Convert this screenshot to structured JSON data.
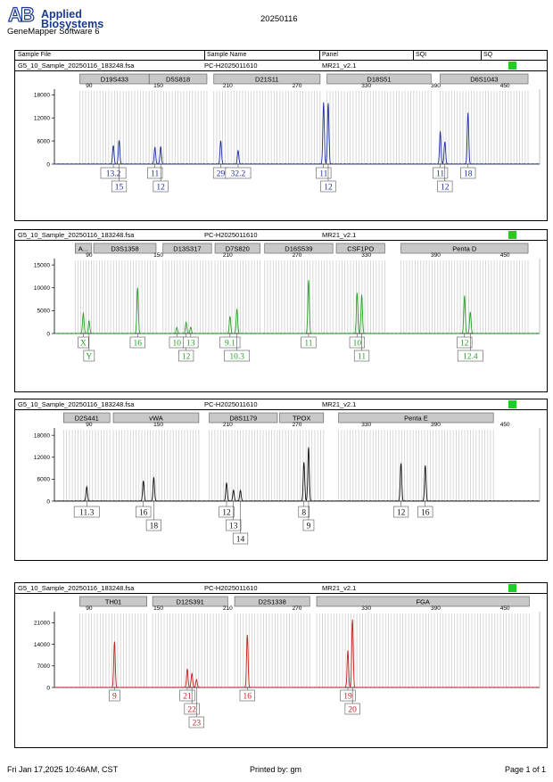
{
  "header": {
    "brand_line1": "Applied",
    "brand_line2": "Biosystems",
    "software": "GeneMapper Software 6",
    "date": "20250116",
    "columns": [
      "Sample File",
      "Sample Name",
      "Panel",
      "SQI",
      "SQ"
    ]
  },
  "colors": {
    "blue": "#1c2ea0",
    "green": "#2aa02a",
    "black": "#111111",
    "red": "#c42020",
    "sq_green": "#22cc22",
    "bin_fill": "#c8c8c8"
  },
  "chart_data": [
    {
      "type": "line",
      "sample_file": "G5_10_Sample_20250116_183248.fsa",
      "sample_name": "PC-H2025011610",
      "panel": "MR21_v2.1",
      "xlim": [
        60,
        480
      ],
      "xticks": [
        90,
        150,
        210,
        270,
        330,
        390,
        450
      ],
      "ylim": [
        0,
        19000
      ],
      "yticks": [
        0,
        6000,
        12000,
        18000
      ],
      "markers": [
        {
          "name": "D19S433",
          "x": [
            82,
            142
          ]
        },
        {
          "name": "D5S818",
          "x": [
            142,
            192
          ]
        },
        {
          "name": "D21S11",
          "x": [
            198,
            290
          ]
        },
        {
          "name": "D18S51",
          "x": [
            296,
            386
          ]
        },
        {
          "name": "D6S1043",
          "x": [
            394,
            470
          ]
        }
      ],
      "peaks": [
        {
          "x": 111,
          "h": 4800,
          "label": "13.2",
          "row": 1
        },
        {
          "x": 116,
          "h": 6100,
          "label": "15",
          "row": 2
        },
        {
          "x": 147,
          "h": 4400,
          "label": "11",
          "row": 1
        },
        {
          "x": 152,
          "h": 4500,
          "label": "12",
          "row": 2
        },
        {
          "x": 204,
          "h": 6000,
          "label": "29",
          "row": 1
        },
        {
          "x": 219,
          "h": 3400,
          "label": "32.2",
          "row": 1
        },
        {
          "x": 293,
          "h": 16000,
          "label": "11",
          "row": 1
        },
        {
          "x": 297,
          "h": 15800,
          "label": "12",
          "row": 2
        },
        {
          "x": 394,
          "h": 8500,
          "label": "11",
          "row": 1
        },
        {
          "x": 398,
          "h": 5800,
          "label": "12",
          "row": 2
        },
        {
          "x": 418,
          "h": 13300,
          "label": "18",
          "row": 1
        }
      ]
    },
    {
      "type": "line",
      "sample_file": "G5_10_Sample_20250116_183248.fsa",
      "sample_name": "PC-H2025011610",
      "panel": "MR21_v2.1",
      "xlim": [
        60,
        480
      ],
      "xticks": [
        90,
        150,
        210,
        270,
        330,
        390,
        450
      ],
      "ylim": [
        0,
        16000
      ],
      "yticks": [
        0,
        5000,
        10000,
        15000
      ],
      "markers": [
        {
          "name": "A...",
          "x": [
            78,
            92
          ]
        },
        {
          "name": "D3S1358",
          "x": [
            94,
            148
          ]
        },
        {
          "name": "D13S317",
          "x": [
            154,
            196
          ]
        },
        {
          "name": "D7S820",
          "x": [
            199,
            238
          ]
        },
        {
          "name": "D16S539",
          "x": [
            242,
            301
          ]
        },
        {
          "name": "CSF1PO",
          "x": [
            304,
            346
          ]
        },
        {
          "name": "Penta D",
          "x": [
            360,
            470
          ]
        }
      ],
      "peaks": [
        {
          "x": 85,
          "h": 4500,
          "label": "X",
          "row": 1
        },
        {
          "x": 90,
          "h": 2700,
          "label": "Y",
          "row": 2
        },
        {
          "x": 132,
          "h": 10000,
          "label": "16",
          "row": 1
        },
        {
          "x": 166,
          "h": 1300,
          "label": "10",
          "row": 1
        },
        {
          "x": 174,
          "h": 2400,
          "label": "12",
          "row": 2
        },
        {
          "x": 178,
          "h": 1300,
          "label": "13",
          "row": 1
        },
        {
          "x": 212,
          "h": 3700,
          "label": "9.1",
          "row": 1
        },
        {
          "x": 218,
          "h": 5300,
          "label": "10.3",
          "row": 2
        },
        {
          "x": 280,
          "h": 11700,
          "label": "11",
          "row": 1
        },
        {
          "x": 322,
          "h": 8800,
          "label": "10",
          "row": 1
        },
        {
          "x": 326,
          "h": 8400,
          "label": "11",
          "row": 2
        },
        {
          "x": 415,
          "h": 8200,
          "label": "12",
          "row": 1
        },
        {
          "x": 420,
          "h": 4700,
          "label": "12.4",
          "row": 2
        }
      ]
    },
    {
      "type": "line",
      "sample_file": "G5_10_Sample_20250116_183248.fsa",
      "sample_name": "PC-H2025011610",
      "panel": "MR21_v2.1",
      "xlim": [
        60,
        480
      ],
      "xticks": [
        90,
        150,
        210,
        270,
        330,
        390,
        450
      ],
      "ylim": [
        0,
        19500
      ],
      "yticks": [
        0,
        6000,
        12000,
        18000
      ],
      "markers": [
        {
          "name": "D2S441",
          "x": [
            68,
            108
          ]
        },
        {
          "name": "vWA",
          "x": [
            111,
            185
          ]
        },
        {
          "name": "D8S1179",
          "x": [
            194,
            253
          ]
        },
        {
          "name": "TPOX",
          "x": [
            255,
            293
          ]
        },
        {
          "name": "Penta E",
          "x": [
            306,
            440
          ]
        }
      ],
      "peaks": [
        {
          "x": 88,
          "h": 3900,
          "label": "11.3",
          "row": 1
        },
        {
          "x": 137,
          "h": 5500,
          "label": "16",
          "row": 1
        },
        {
          "x": 146,
          "h": 6500,
          "label": "18",
          "row": 2
        },
        {
          "x": 209,
          "h": 5000,
          "label": "12",
          "row": 1
        },
        {
          "x": 215,
          "h": 2900,
          "label": "13",
          "row": 2
        },
        {
          "x": 221,
          "h": 2900,
          "label": "14",
          "row": 3
        },
        {
          "x": 276,
          "h": 10600,
          "label": "8",
          "row": 1
        },
        {
          "x": 280,
          "h": 14700,
          "label": "9",
          "row": 2
        },
        {
          "x": 360,
          "h": 10300,
          "label": "12",
          "row": 1
        },
        {
          "x": 381,
          "h": 9700,
          "label": "16",
          "row": 1
        }
      ]
    },
    {
      "type": "line",
      "sample_file": "G5_10_Sample_20250116_183248.fsa",
      "sample_name": "PC-H2025011610",
      "panel": "MR21_v2.1",
      "xlim": [
        60,
        480
      ],
      "xticks": [
        90,
        150,
        210,
        270,
        330,
        390,
        450
      ],
      "ylim": [
        0,
        24000
      ],
      "yticks": [
        0,
        7000,
        14000,
        21000
      ],
      "markers": [
        {
          "name": "TH01",
          "x": [
            82,
            140
          ]
        },
        {
          "name": "D12S391",
          "x": [
            145,
            210
          ]
        },
        {
          "name": "D2S1338",
          "x": [
            216,
            281
          ]
        },
        {
          "name": "FGA",
          "x": [
            287,
            471
          ]
        }
      ],
      "peaks": [
        {
          "x": 112,
          "h": 14800,
          "label": "9",
          "row": 1
        },
        {
          "x": 175,
          "h": 6000,
          "label": "21",
          "row": 1
        },
        {
          "x": 179,
          "h": 4500,
          "label": "22",
          "row": 2
        },
        {
          "x": 183,
          "h": 2500,
          "label": "23",
          "row": 3
        },
        {
          "x": 227,
          "h": 17000,
          "label": "16",
          "row": 1
        },
        {
          "x": 314,
          "h": 12000,
          "label": "19",
          "row": 1
        },
        {
          "x": 318,
          "h": 22000,
          "label": "20",
          "row": 2
        }
      ]
    }
  ],
  "footer": {
    "left": "Fri Jan 17,2025 10:46AM, CST",
    "center": "Printed by: gm",
    "right": "Page 1 of 1"
  }
}
